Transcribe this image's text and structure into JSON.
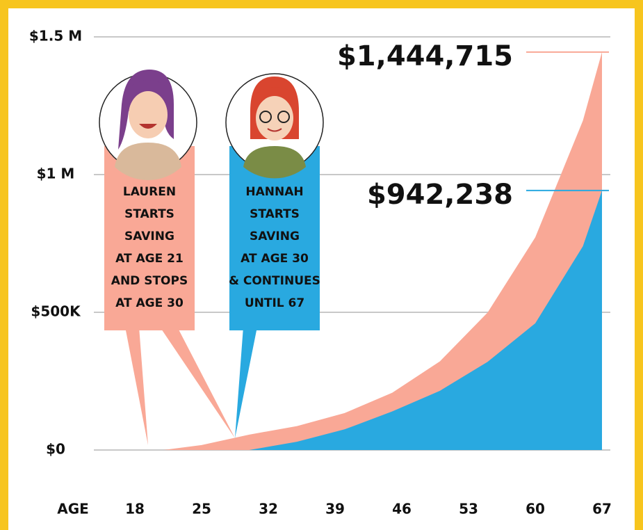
{
  "chart_data": {
    "type": "area",
    "x_label": "AGE",
    "x": [
      21,
      25,
      30,
      35,
      40,
      45,
      50,
      55,
      60,
      65,
      67
    ],
    "series": [
      {
        "color": "#f9a896",
        "values": [
          0,
          18000,
          56000,
          86800,
          134000,
          208000,
          322000,
          499000,
          772000,
          1196000,
          1444715
        ],
        "end_label": "$1,444,715"
      },
      {
        "color": "#29a9e0",
        "values": [
          null,
          null,
          0,
          30000,
          75000,
          140000,
          215000,
          320000,
          460000,
          740000,
          942238
        ],
        "end_label": "$942,238"
      }
    ],
    "xlim": [
      18,
      67
    ],
    "xticks": [
      18,
      25,
      32,
      39,
      46,
      53,
      60,
      67
    ],
    "ylim": [
      0,
      1500000
    ],
    "yticks": [
      {
        "value": 0,
        "label": "$0"
      },
      {
        "value": 500000,
        "label": "$500K"
      },
      {
        "value": 1000000,
        "label": "$1 M"
      },
      {
        "value": 1500000,
        "label": "$1.5 M"
      }
    ],
    "grid": true,
    "callouts": [
      {
        "lines": [
          "LAUREN",
          "STARTS",
          "SAVING",
          "AT AGE 21",
          "AND STOPS",
          "AT AGE 30"
        ],
        "color": "#f9a896"
      },
      {
        "lines": [
          "HANNAH",
          "STARTS",
          "SAVING",
          "AT AGE 30",
          "& CONTINUES",
          "UNTIL 67"
        ],
        "color": "#29a9e0"
      }
    ]
  }
}
